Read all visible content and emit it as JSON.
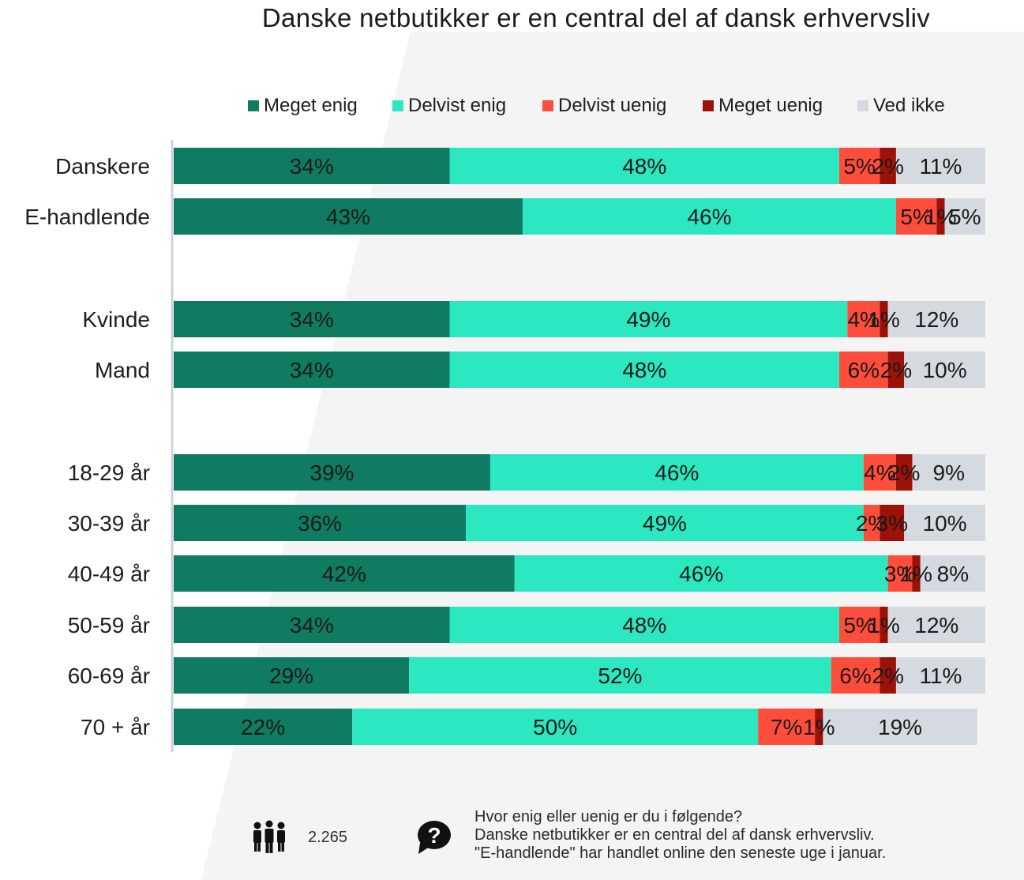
{
  "title": "Danske netbutikker er en central del af dansk erhvervsliv",
  "legend": [
    {
      "label": "Meget enig",
      "color": "#0f7b62"
    },
    {
      "label": "Delvist enig",
      "color": "#2be8c1"
    },
    {
      "label": "Delvist uenig",
      "color": "#ff4d3c"
    },
    {
      "label": "Meget uenig",
      "color": "#9b1208"
    },
    {
      "label": "Ved ikke",
      "color": "#d5d9e0"
    }
  ],
  "chart_data": {
    "type": "bar",
    "orientation": "horizontal",
    "stacked": true,
    "percent": true,
    "categories": [
      "Danskere",
      "E-handlende",
      "Kvinde",
      "Mand",
      "18-29 år",
      "30-39 år",
      "40-49 år",
      "50-59 år",
      "60-69 år",
      "70 + år"
    ],
    "series": [
      {
        "name": "Meget enig",
        "color": "#0f7b62",
        "values": [
          34,
          43,
          34,
          34,
          39,
          36,
          42,
          34,
          29,
          22
        ]
      },
      {
        "name": "Delvist enig",
        "color": "#2be8c1",
        "values": [
          48,
          46,
          49,
          48,
          46,
          49,
          46,
          48,
          52,
          50
        ]
      },
      {
        "name": "Delvist uenig",
        "color": "#ff4d3c",
        "values": [
          5,
          5,
          4,
          6,
          4,
          2,
          3,
          5,
          6,
          7
        ]
      },
      {
        "name": "Meget uenig",
        "color": "#9b1208",
        "values": [
          2,
          1,
          1,
          2,
          2,
          3,
          1,
          1,
          2,
          1
        ]
      },
      {
        "name": "Ved ikke",
        "color": "#d5d9e0",
        "values": [
          11,
          5,
          12,
          10,
          9,
          10,
          8,
          12,
          11,
          19
        ]
      }
    ],
    "value_suffix": "%",
    "xlim": [
      0,
      100
    ],
    "legend_position": "top",
    "grid": false
  },
  "footer": {
    "respondents": "2.265",
    "people_icon": "people-icon",
    "question_icon": "question-bubble-icon",
    "question_lines": [
      "Hvor enig eller uenig er du i følgende?",
      "Danske netbutikker er en central del af dansk erhvervsliv.",
      "\"E-handlende\" har handlet online den seneste uge i januar."
    ]
  }
}
